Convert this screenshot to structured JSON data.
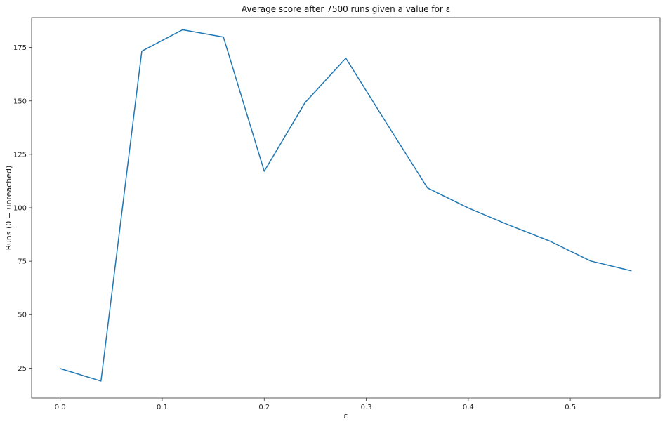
{
  "chart_data": {
    "type": "line",
    "title": "Average score after 7500 runs given a value for ε",
    "xlabel": "ε",
    "ylabel": "Runs (0 = unreached)",
    "xlim": [
      -0.028,
      0.588
    ],
    "ylim": [
      11,
      189
    ],
    "xticks": [
      0.0,
      0.1,
      0.2,
      0.3,
      0.4,
      0.5
    ],
    "xtick_labels": [
      "0.0",
      "0.1",
      "0.2",
      "0.3",
      "0.4",
      "0.5"
    ],
    "yticks": [
      25,
      50,
      75,
      100,
      125,
      150,
      175
    ],
    "ytick_labels": [
      "25",
      "50",
      "75",
      "100",
      "125",
      "150",
      "175"
    ],
    "grid": false,
    "series": [
      {
        "color": "#1f77b4",
        "x": [
          0.0,
          0.04,
          0.08,
          0.12,
          0.16,
          0.2,
          0.24,
          0.28,
          0.32,
          0.36,
          0.4,
          0.44,
          0.48,
          0.52,
          0.56
        ],
        "y": [
          24.8,
          18.9,
          173.3,
          183.3,
          179.9,
          117.1,
          149.2,
          170.0,
          139.5,
          109.3,
          99.9,
          91.9,
          84.4,
          75.1,
          70.5
        ]
      }
    ]
  }
}
